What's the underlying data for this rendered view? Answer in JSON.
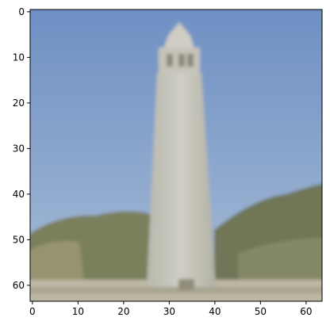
{
  "figure": {
    "image_description_icon": "lighthouse-tower-photo-icon",
    "image_size": [
      64,
      64
    ],
    "x_ticks": [
      "0",
      "10",
      "20",
      "30",
      "40",
      "50",
      "60"
    ],
    "y_ticks": [
      "0",
      "10",
      "20",
      "30",
      "40",
      "50",
      "60"
    ]
  },
  "colors": {
    "sky_top": "#6d8fc3",
    "sky_bottom": "#9bb3d2",
    "tower": "#c7c6bd",
    "tower_shadow": "#aeae9f",
    "trees_dark": "#6c7354",
    "trees_light": "#8f9170",
    "ground": "#b8b3a0",
    "axis": "#000000"
  }
}
